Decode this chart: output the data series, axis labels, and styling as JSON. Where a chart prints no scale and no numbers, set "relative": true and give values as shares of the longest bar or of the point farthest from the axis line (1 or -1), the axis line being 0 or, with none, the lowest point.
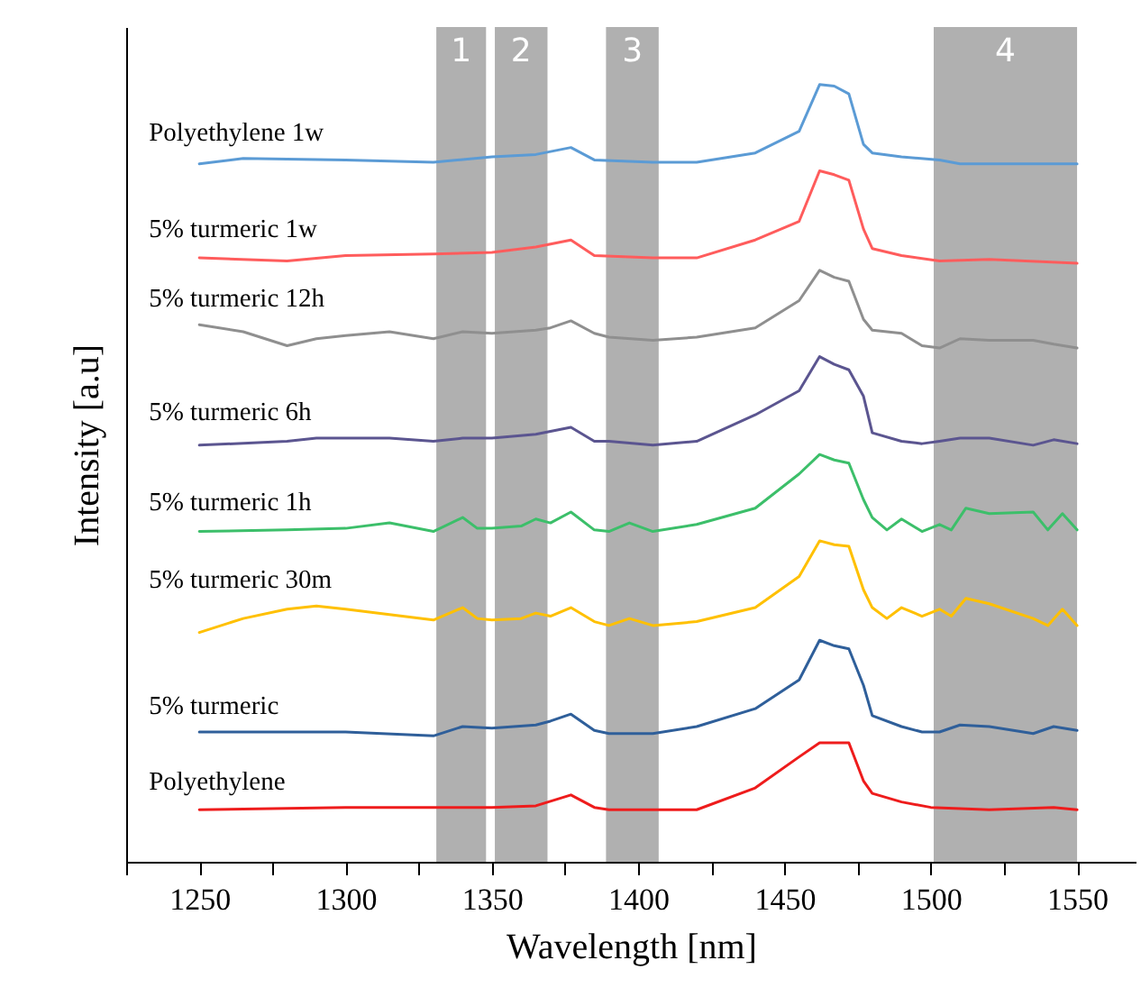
{
  "chart_data": {
    "type": "line",
    "relative": true,
    "xlabel": "Wavelength [nm]",
    "ylabel": "Intensity [a.u]",
    "tick_labels": "x",
    "line_style": "solid",
    "xlim": [
      1225,
      1570
    ],
    "xticks": [
      {
        "value": 1225,
        "label": null
      },
      1250,
      {
        "value": 1275,
        "label": null
      },
      1300,
      {
        "value": 1325,
        "label": null
      },
      1350,
      {
        "value": 1375,
        "label": null
      },
      1400,
      {
        "value": 1425,
        "label": null
      },
      1450,
      {
        "value": 1475,
        "label": null
      },
      1500,
      {
        "value": 1525,
        "label": null
      },
      1550
    ],
    "bands": [
      {
        "axis": "x",
        "from": 1331,
        "to": 1348,
        "label": "1",
        "color": "#b0b0b0"
      },
      {
        "axis": "x",
        "from": 1351,
        "to": 1369,
        "label": "2",
        "color": "#b0b0b0"
      },
      {
        "axis": "x",
        "from": 1389,
        "to": 1407,
        "label": "3",
        "color": "#b0b0b0"
      },
      {
        "axis": "x",
        "from": 1501,
        "to": 1550,
        "label": "4",
        "color": "#b0b0b0"
      }
    ],
    "series": [
      {
        "name": "Polyethylene 1w",
        "color": "#5b9bd5",
        "x": [
          1250,
          1265,
          1300,
          1330,
          1350,
          1365,
          1377,
          1385,
          1405,
          1420,
          1440,
          1455,
          1462,
          1467,
          1472,
          1477,
          1480,
          1490,
          1503,
          1510,
          1550
        ],
        "values": [
          0.898,
          0.905,
          0.903,
          0.9,
          0.907,
          0.91,
          0.919,
          0.903,
          0.9,
          0.9,
          0.912,
          0.94,
          1,
          0.998,
          0.988,
          0.923,
          0.912,
          0.907,
          0.903,
          0.898,
          0.898
        ]
      },
      {
        "name": "5% turmeric 1w",
        "color": "#ff5c5c",
        "x": [
          1250,
          1280,
          1300,
          1330,
          1350,
          1365,
          1377,
          1385,
          1405,
          1420,
          1440,
          1455,
          1462,
          1467,
          1472,
          1477,
          1480,
          1490,
          1503,
          1520,
          1550
        ],
        "values": [
          0.777,
          0.773,
          0.78,
          0.782,
          0.784,
          0.791,
          0.8,
          0.78,
          0.777,
          0.777,
          0.8,
          0.824,
          0.889,
          0.884,
          0.877,
          0.814,
          0.789,
          0.78,
          0.773,
          0.775,
          0.77
        ]
      },
      {
        "name": "5% turmeric 12h",
        "color": "#8f8f8f",
        "x": [
          1250,
          1265,
          1280,
          1290,
          1300,
          1315,
          1330,
          1340,
          1350,
          1365,
          1370,
          1377,
          1385,
          1390,
          1405,
          1420,
          1440,
          1455,
          1462,
          1467,
          1472,
          1477,
          1480,
          1490,
          1497,
          1503,
          1510,
          1520,
          1535,
          1542,
          1550
        ],
        "values": [
          0.691,
          0.682,
          0.664,
          0.673,
          0.677,
          0.682,
          0.673,
          0.682,
          0.68,
          0.684,
          0.687,
          0.696,
          0.68,
          0.675,
          0.671,
          0.675,
          0.687,
          0.722,
          0.761,
          0.752,
          0.747,
          0.698,
          0.684,
          0.68,
          0.664,
          0.661,
          0.673,
          0.671,
          0.671,
          0.666,
          0.661
        ]
      },
      {
        "name": "5% turmeric 6h",
        "color": "#5b5590",
        "x": [
          1250,
          1280,
          1290,
          1315,
          1330,
          1340,
          1350,
          1365,
          1377,
          1385,
          1390,
          1405,
          1420,
          1440,
          1455,
          1462,
          1467,
          1472,
          1477,
          1480,
          1490,
          1497,
          1503,
          1510,
          1520,
          1535,
          1542,
          1550
        ],
        "values": [
          0.536,
          0.541,
          0.545,
          0.545,
          0.541,
          0.545,
          0.545,
          0.55,
          0.559,
          0.541,
          0.541,
          0.536,
          0.541,
          0.575,
          0.606,
          0.65,
          0.64,
          0.633,
          0.599,
          0.552,
          0.541,
          0.538,
          0.541,
          0.545,
          0.545,
          0.536,
          0.543,
          0.538
        ]
      },
      {
        "name": "5% turmeric 1h",
        "color": "#3cbf6a",
        "x": [
          1250,
          1280,
          1300,
          1315,
          1330,
          1340,
          1345,
          1350,
          1360,
          1365,
          1370,
          1377,
          1385,
          1390,
          1397,
          1405,
          1420,
          1440,
          1455,
          1462,
          1467,
          1472,
          1477,
          1480,
          1485,
          1490,
          1497,
          1503,
          1507,
          1512,
          1520,
          1535,
          1540,
          1545,
          1550
        ],
        "values": [
          0.425,
          0.427,
          0.429,
          0.436,
          0.425,
          0.443,
          0.429,
          0.429,
          0.432,
          0.441,
          0.436,
          0.45,
          0.427,
          0.425,
          0.436,
          0.425,
          0.434,
          0.455,
          0.499,
          0.524,
          0.517,
          0.513,
          0.466,
          0.443,
          0.427,
          0.441,
          0.425,
          0.434,
          0.427,
          0.455,
          0.448,
          0.45,
          0.427,
          0.448,
          0.427
        ]
      },
      {
        "name": "5% turmeric 30m",
        "color": "#ffc000",
        "x": [
          1250,
          1265,
          1280,
          1290,
          1300,
          1315,
          1330,
          1340,
          1345,
          1350,
          1360,
          1365,
          1370,
          1377,
          1385,
          1390,
          1397,
          1405,
          1420,
          1440,
          1455,
          1462,
          1467,
          1472,
          1477,
          1480,
          1485,
          1490,
          1497,
          1503,
          1507,
          1512,
          1520,
          1535,
          1540,
          1545,
          1550
        ],
        "values": [
          0.295,
          0.313,
          0.325,
          0.329,
          0.325,
          0.318,
          0.311,
          0.327,
          0.313,
          0.311,
          0.313,
          0.32,
          0.316,
          0.327,
          0.309,
          0.304,
          0.313,
          0.304,
          0.309,
          0.327,
          0.367,
          0.413,
          0.408,
          0.406,
          0.35,
          0.327,
          0.313,
          0.327,
          0.316,
          0.325,
          0.316,
          0.339,
          0.332,
          0.313,
          0.304,
          0.325,
          0.304
        ]
      },
      {
        "name": "5% turmeric",
        "color": "#2f5f9a",
        "x": [
          1250,
          1300,
          1330,
          1340,
          1350,
          1365,
          1370,
          1377,
          1385,
          1390,
          1405,
          1420,
          1440,
          1455,
          1462,
          1467,
          1472,
          1477,
          1480,
          1490,
          1497,
          1503,
          1510,
          1520,
          1535,
          1542,
          1550
        ],
        "values": [
          0.167,
          0.167,
          0.162,
          0.174,
          0.172,
          0.176,
          0.181,
          0.19,
          0.169,
          0.165,
          0.165,
          0.174,
          0.197,
          0.234,
          0.285,
          0.278,
          0.274,
          0.227,
          0.188,
          0.174,
          0.167,
          0.167,
          0.176,
          0.174,
          0.165,
          0.174,
          0.169
        ]
      },
      {
        "name": "Polyethylene",
        "color": "#ee1c1c",
        "x": [
          1250,
          1300,
          1350,
          1365,
          1377,
          1385,
          1390,
          1420,
          1440,
          1455,
          1462,
          1472,
          1477,
          1480,
          1490,
          1500,
          1520,
          1542,
          1550
        ],
        "values": [
          0.067,
          0.07,
          0.07,
          0.072,
          0.086,
          0.07,
          0.067,
          0.067,
          0.095,
          0.135,
          0.153,
          0.153,
          0.104,
          0.088,
          0.077,
          0.07,
          0.067,
          0.07,
          0.067
        ]
      }
    ]
  }
}
